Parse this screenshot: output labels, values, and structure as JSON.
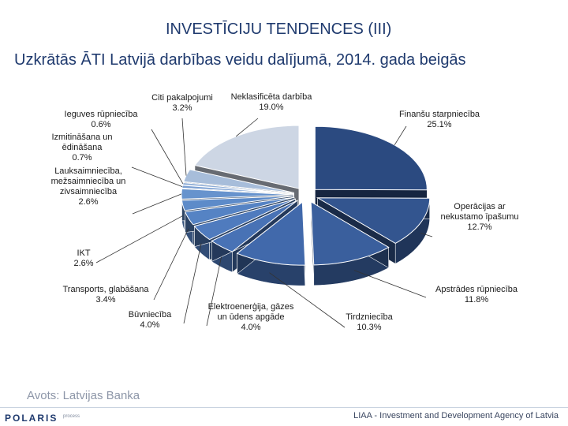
{
  "slide": {
    "title": "INVESTĪCIJU TENDENCES (III)",
    "subtitle": "Uzkrātās ĀTI Latvijā darbības veidu dalījumā, 2014. gada beigās",
    "source": "Avots: Latvijas Banka",
    "logo": "POLARIS",
    "logo_tag": "process",
    "agency": "LIAA - Investment and Development Agency of Latvia"
  },
  "chart_data": {
    "type": "pie",
    "title": "",
    "style": "3d-exploded",
    "slices": [
      {
        "label_lines": [
          "Finanšu starpniecība"
        ],
        "value": 25.1,
        "value_text": "25.1%",
        "color": "#2b4a80"
      },
      {
        "label_lines": [
          "Operācijas ar",
          "nekustamo īpašumu"
        ],
        "value": 12.7,
        "value_text": "12.7%",
        "color": "#33558f"
      },
      {
        "label_lines": [
          "Apstrādes rūpniecība"
        ],
        "value": 11.8,
        "value_text": "11.8%",
        "color": "#3a5f9d"
      },
      {
        "label_lines": [
          "Tirdzniecība"
        ],
        "value": 10.3,
        "value_text": "10.3%",
        "color": "#4169ab"
      },
      {
        "label_lines": [
          "Elektroenerģija, gāzes",
          "un ūdens apgāde"
        ],
        "value": 4.0,
        "value_text": "4.0%",
        "color": "#4872b5"
      },
      {
        "label_lines": [
          "Būvniecība"
        ],
        "value": 4.0,
        "value_text": "4.0%",
        "color": "#4f7bbe"
      },
      {
        "label_lines": [
          "Transports, glabāšana"
        ],
        "value": 3.4,
        "value_text": "3.4%",
        "color": "#5583c4"
      },
      {
        "label_lines": [
          "IKT"
        ],
        "value": 2.6,
        "value_text": "2.6%",
        "color": "#5d8bc9"
      },
      {
        "label_lines": [
          "Lauksaimniecība,",
          "mežsaimniecība un",
          "zivsaimniecība"
        ],
        "value": 2.6,
        "value_text": "2.6%",
        "color": "#6793cd"
      },
      {
        "label_lines": [
          "Izmitināšana un",
          "ēdināšana"
        ],
        "value": 0.7,
        "value_text": "0.7%",
        "color": "#7a9fd2"
      },
      {
        "label_lines": [
          "Ieguves rūpniecība"
        ],
        "value": 0.6,
        "value_text": "0.6%",
        "color": "#8dacd6"
      },
      {
        "label_lines": [
          "Citi pakalpojumi"
        ],
        "value": 3.2,
        "value_text": "3.2%",
        "color": "#a7bdda"
      },
      {
        "label_lines": [
          "Neklasificēta darbība"
        ],
        "value": 19.0,
        "value_text": "19.0%",
        "color": "#cdd6e4"
      }
    ]
  }
}
